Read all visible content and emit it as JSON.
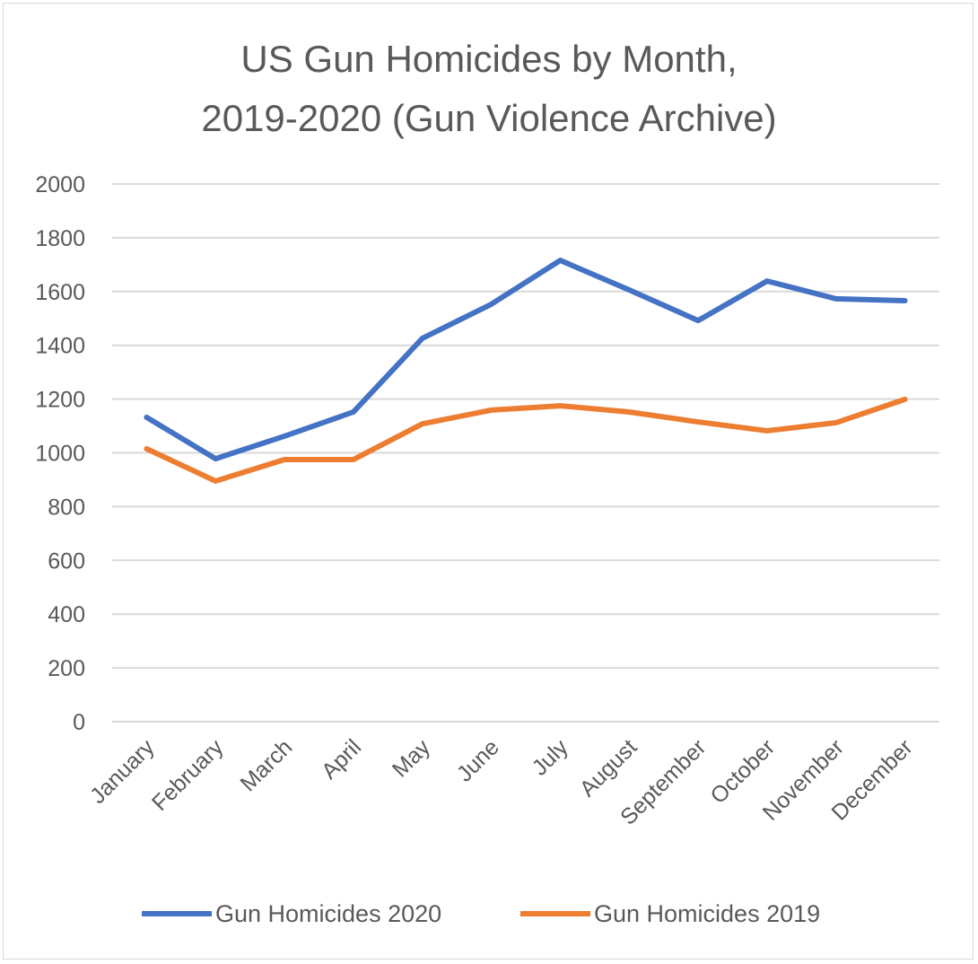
{
  "chart_data": {
    "type": "line",
    "title_lines": [
      "US Gun Homicides by Month,",
      "2019-2020 (Gun Violence Archive)"
    ],
    "xlabel": "",
    "ylabel": "",
    "categories": [
      "January",
      "February",
      "March",
      "April",
      "May",
      "June",
      "July",
      "August",
      "September",
      "October",
      "November",
      "December"
    ],
    "yticks": [
      "0",
      "200",
      "400",
      "600",
      "800",
      "1000",
      "1200",
      "1400",
      "1600",
      "1800",
      "2000"
    ],
    "ylim": [
      0,
      2000
    ],
    "grid": true,
    "legend_position": "bottom",
    "series": [
      {
        "name": "Gun Homicides 2020",
        "color": "#4472C4",
        "values": [
          1132,
          978,
          1062,
          1152,
          1426,
          1553,
          1716,
          1606,
          1492,
          1639,
          1573,
          1566
        ]
      },
      {
        "name": "Gun Homicides 2019",
        "color": "#ED7D31",
        "values": [
          1015,
          895,
          975,
          975,
          1108,
          1159,
          1175,
          1152,
          1115,
          1082,
          1112,
          1199
        ]
      }
    ]
  }
}
